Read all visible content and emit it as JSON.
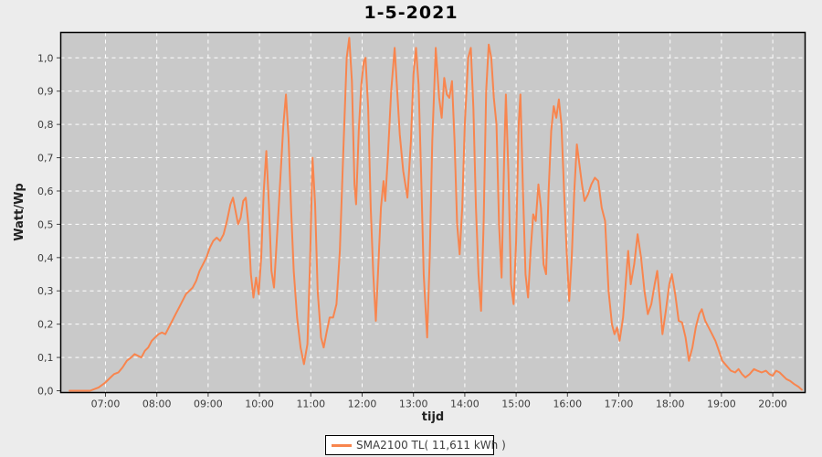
{
  "chart_data": {
    "type": "line",
    "title": "1-5-2021",
    "xlabel": "tijd",
    "ylabel": "Watt/Wp",
    "grid": true,
    "legend": {
      "label": "SMA2100 TL( 11,611 kWh )",
      "position": "bottom-center"
    },
    "colors": {
      "series": "#f8854e",
      "plot_background": "#c9c9c9",
      "outer_background": "#ececec",
      "gridline": "#ffffff",
      "axis_text": "#3d3d3d",
      "plot_border": "#000000"
    },
    "ylim": [
      0,
      1.08
    ],
    "y_ticks": [
      {
        "v": 0.0,
        "label": "0,0"
      },
      {
        "v": 0.1,
        "label": "0,1"
      },
      {
        "v": 0.2,
        "label": "0,2"
      },
      {
        "v": 0.3,
        "label": "0,3"
      },
      {
        "v": 0.4,
        "label": "0,4"
      },
      {
        "v": 0.5,
        "label": "0,5"
      },
      {
        "v": 0.6,
        "label": "0,6"
      },
      {
        "v": 0.7,
        "label": "0,7"
      },
      {
        "v": 0.8,
        "label": "0,8"
      },
      {
        "v": 0.9,
        "label": "0,9"
      },
      {
        "v": 1.0,
        "label": "1,0"
      }
    ],
    "x_ticks": [
      {
        "h": 7,
        "label": "07:00"
      },
      {
        "h": 8,
        "label": "08:00"
      },
      {
        "h": 9,
        "label": "09:00"
      },
      {
        "h": 10,
        "label": "10:00"
      },
      {
        "h": 11,
        "label": "11:00"
      },
      {
        "h": 12,
        "label": "12:00"
      },
      {
        "h": 13,
        "label": "13:00"
      },
      {
        "h": 14,
        "label": "14:00"
      },
      {
        "h": 15,
        "label": "15:00"
      },
      {
        "h": 16,
        "label": "16:00"
      },
      {
        "h": 17,
        "label": "17:00"
      },
      {
        "h": 18,
        "label": "18:00"
      },
      {
        "h": 19,
        "label": "19:00"
      },
      {
        "h": 20,
        "label": "20:00"
      }
    ],
    "series": [
      {
        "name": "SMA2100 TL( 11,611 kWh )",
        "color": "#f8854e",
        "points": [
          [
            "06:18",
            0.0
          ],
          [
            "06:30",
            0.0
          ],
          [
            "06:42",
            0.0
          ],
          [
            "06:52",
            0.01
          ],
          [
            "07:00",
            0.025
          ],
          [
            "07:06",
            0.04
          ],
          [
            "07:10",
            0.05
          ],
          [
            "07:15",
            0.055
          ],
          [
            "07:20",
            0.07
          ],
          [
            "07:25",
            0.09
          ],
          [
            "07:30",
            0.1
          ],
          [
            "07:34",
            0.11
          ],
          [
            "07:38",
            0.105
          ],
          [
            "07:42",
            0.1
          ],
          [
            "07:46",
            0.12
          ],
          [
            "07:50",
            0.13
          ],
          [
            "07:54",
            0.15
          ],
          [
            "07:58",
            0.16
          ],
          [
            "08:02",
            0.17
          ],
          [
            "08:06",
            0.175
          ],
          [
            "08:10",
            0.17
          ],
          [
            "08:14",
            0.19
          ],
          [
            "08:18",
            0.21
          ],
          [
            "08:22",
            0.23
          ],
          [
            "08:26",
            0.25
          ],
          [
            "08:30",
            0.27
          ],
          [
            "08:34",
            0.29
          ],
          [
            "08:38",
            0.3
          ],
          [
            "08:42",
            0.31
          ],
          [
            "08:46",
            0.33
          ],
          [
            "08:50",
            0.36
          ],
          [
            "08:54",
            0.38
          ],
          [
            "08:58",
            0.4
          ],
          [
            "09:02",
            0.43
          ],
          [
            "09:06",
            0.45
          ],
          [
            "09:10",
            0.46
          ],
          [
            "09:14",
            0.45
          ],
          [
            "09:18",
            0.47
          ],
          [
            "09:22",
            0.51
          ],
          [
            "09:26",
            0.56
          ],
          [
            "09:29",
            0.58
          ],
          [
            "09:32",
            0.54
          ],
          [
            "09:35",
            0.5
          ],
          [
            "09:38",
            0.52
          ],
          [
            "09:41",
            0.57
          ],
          [
            "09:44",
            0.58
          ],
          [
            "09:47",
            0.5
          ],
          [
            "09:50",
            0.35
          ],
          [
            "09:53",
            0.28
          ],
          [
            "09:56",
            0.34
          ],
          [
            "09:59",
            0.29
          ],
          [
            "10:02",
            0.4
          ],
          [
            "10:05",
            0.6
          ],
          [
            "10:08",
            0.72
          ],
          [
            "10:11",
            0.56
          ],
          [
            "10:14",
            0.36
          ],
          [
            "10:17",
            0.31
          ],
          [
            "10:20",
            0.44
          ],
          [
            "10:24",
            0.62
          ],
          [
            "10:28",
            0.8
          ],
          [
            "10:31",
            0.89
          ],
          [
            "10:34",
            0.76
          ],
          [
            "10:37",
            0.54
          ],
          [
            "10:40",
            0.36
          ],
          [
            "10:44",
            0.22
          ],
          [
            "10:48",
            0.13
          ],
          [
            "10:52",
            0.08
          ],
          [
            "10:56",
            0.14
          ],
          [
            "10:59",
            0.38
          ],
          [
            "11:02",
            0.7
          ],
          [
            "11:05",
            0.56
          ],
          [
            "11:08",
            0.3
          ],
          [
            "11:12",
            0.16
          ],
          [
            "11:15",
            0.13
          ],
          [
            "11:18",
            0.17
          ],
          [
            "11:22",
            0.22
          ],
          [
            "11:26",
            0.22
          ],
          [
            "11:30",
            0.26
          ],
          [
            "11:34",
            0.42
          ],
          [
            "11:38",
            0.72
          ],
          [
            "11:42",
            1.0
          ],
          [
            "11:45",
            1.06
          ],
          [
            "11:48",
            0.93
          ],
          [
            "11:51",
            0.62
          ],
          [
            "11:53",
            0.56
          ],
          [
            "11:56",
            0.78
          ],
          [
            "11:59",
            0.92
          ],
          [
            "12:02",
            0.99
          ],
          [
            "12:04",
            1.0
          ],
          [
            "12:07",
            0.85
          ],
          [
            "12:10",
            0.55
          ],
          [
            "12:13",
            0.35
          ],
          [
            "12:16",
            0.21
          ],
          [
            "12:19",
            0.38
          ],
          [
            "12:22",
            0.55
          ],
          [
            "12:25",
            0.63
          ],
          [
            "12:27",
            0.57
          ],
          [
            "12:30",
            0.7
          ],
          [
            "12:34",
            0.9
          ],
          [
            "12:38",
            1.03
          ],
          [
            "12:41",
            0.9
          ],
          [
            "12:44",
            0.77
          ],
          [
            "12:48",
            0.66
          ],
          [
            "12:53",
            0.58
          ],
          [
            "12:57",
            0.75
          ],
          [
            "13:00",
            0.95
          ],
          [
            "13:03",
            1.03
          ],
          [
            "13:06",
            0.92
          ],
          [
            "13:09",
            0.65
          ],
          [
            "13:12",
            0.35
          ],
          [
            "13:16",
            0.16
          ],
          [
            "13:19",
            0.4
          ],
          [
            "13:22",
            0.75
          ],
          [
            "13:26",
            1.03
          ],
          [
            "13:30",
            0.88
          ],
          [
            "13:33",
            0.82
          ],
          [
            "13:36",
            0.94
          ],
          [
            "13:39",
            0.89
          ],
          [
            "13:42",
            0.88
          ],
          [
            "13:45",
            0.93
          ],
          [
            "13:48",
            0.75
          ],
          [
            "13:51",
            0.5
          ],
          [
            "13:54",
            0.41
          ],
          [
            "13:57",
            0.55
          ],
          [
            "14:00",
            0.8
          ],
          [
            "14:04",
            1.0
          ],
          [
            "14:07",
            1.03
          ],
          [
            "14:10",
            0.85
          ],
          [
            "14:13",
            0.55
          ],
          [
            "14:16",
            0.35
          ],
          [
            "14:19",
            0.24
          ],
          [
            "14:22",
            0.5
          ],
          [
            "14:25",
            0.9
          ],
          [
            "14:28",
            1.04
          ],
          [
            "14:31",
            1.0
          ],
          [
            "14:34",
            0.88
          ],
          [
            "14:37",
            0.8
          ],
          [
            "14:40",
            0.5
          ],
          [
            "14:43",
            0.34
          ],
          [
            "14:46",
            0.7
          ],
          [
            "14:48",
            0.89
          ],
          [
            "14:51",
            0.65
          ],
          [
            "14:54",
            0.32
          ],
          [
            "14:57",
            0.26
          ],
          [
            "15:00",
            0.45
          ],
          [
            "15:03",
            0.8
          ],
          [
            "15:05",
            0.89
          ],
          [
            "15:08",
            0.6
          ],
          [
            "15:11",
            0.35
          ],
          [
            "15:14",
            0.28
          ],
          [
            "15:17",
            0.42
          ],
          [
            "15:20",
            0.53
          ],
          [
            "15:23",
            0.51
          ],
          [
            "15:26",
            0.62
          ],
          [
            "15:29",
            0.55
          ],
          [
            "15:32",
            0.38
          ],
          [
            "15:35",
            0.35
          ],
          [
            "15:38",
            0.6
          ],
          [
            "15:41",
            0.78
          ],
          [
            "15:44",
            0.855
          ],
          [
            "15:47",
            0.82
          ],
          [
            "15:50",
            0.875
          ],
          [
            "15:53",
            0.8
          ],
          [
            "15:56",
            0.6
          ],
          [
            "15:59",
            0.42
          ],
          [
            "16:02",
            0.27
          ],
          [
            "16:05",
            0.4
          ],
          [
            "16:08",
            0.6
          ],
          [
            "16:11",
            0.74
          ],
          [
            "16:14",
            0.68
          ],
          [
            "16:17",
            0.62
          ],
          [
            "16:20",
            0.57
          ],
          [
            "16:24",
            0.59
          ],
          [
            "16:28",
            0.62
          ],
          [
            "16:32",
            0.64
          ],
          [
            "16:36",
            0.63
          ],
          [
            "16:40",
            0.55
          ],
          [
            "16:44",
            0.51
          ],
          [
            "16:48",
            0.3
          ],
          [
            "16:52",
            0.2
          ],
          [
            "16:55",
            0.17
          ],
          [
            "16:58",
            0.19
          ],
          [
            "17:01",
            0.15
          ],
          [
            "17:05",
            0.22
          ],
          [
            "17:08",
            0.32
          ],
          [
            "17:11",
            0.42
          ],
          [
            "17:14",
            0.32
          ],
          [
            "17:18",
            0.38
          ],
          [
            "17:22",
            0.47
          ],
          [
            "17:26",
            0.4
          ],
          [
            "17:30",
            0.3
          ],
          [
            "17:34",
            0.23
          ],
          [
            "17:38",
            0.26
          ],
          [
            "17:42",
            0.32
          ],
          [
            "17:45",
            0.36
          ],
          [
            "17:48",
            0.27
          ],
          [
            "17:51",
            0.17
          ],
          [
            "17:55",
            0.24
          ],
          [
            "17:59",
            0.32
          ],
          [
            "18:02",
            0.35
          ],
          [
            "18:06",
            0.29
          ],
          [
            "18:10",
            0.21
          ],
          [
            "18:14",
            0.205
          ],
          [
            "18:18",
            0.16
          ],
          [
            "18:22",
            0.09
          ],
          [
            "18:26",
            0.13
          ],
          [
            "18:30",
            0.19
          ],
          [
            "18:34",
            0.23
          ],
          [
            "18:37",
            0.245
          ],
          [
            "18:41",
            0.21
          ],
          [
            "18:45",
            0.19
          ],
          [
            "18:49",
            0.17
          ],
          [
            "18:53",
            0.15
          ],
          [
            "18:57",
            0.12
          ],
          [
            "19:01",
            0.09
          ],
          [
            "19:06",
            0.075
          ],
          [
            "19:11",
            0.06
          ],
          [
            "19:16",
            0.055
          ],
          [
            "19:20",
            0.065
          ],
          [
            "19:24",
            0.05
          ],
          [
            "19:28",
            0.04
          ],
          [
            "19:33",
            0.05
          ],
          [
            "19:38",
            0.065
          ],
          [
            "19:42",
            0.06
          ],
          [
            "19:47",
            0.055
          ],
          [
            "19:52",
            0.06
          ],
          [
            "19:56",
            0.05
          ],
          [
            "20:00",
            0.045
          ],
          [
            "20:04",
            0.06
          ],
          [
            "20:08",
            0.055
          ],
          [
            "20:12",
            0.045
          ],
          [
            "20:16",
            0.035
          ],
          [
            "20:20",
            0.03
          ],
          [
            "20:25",
            0.02
          ],
          [
            "20:30",
            0.012
          ],
          [
            "20:34",
            0.003
          ]
        ]
      }
    ]
  }
}
